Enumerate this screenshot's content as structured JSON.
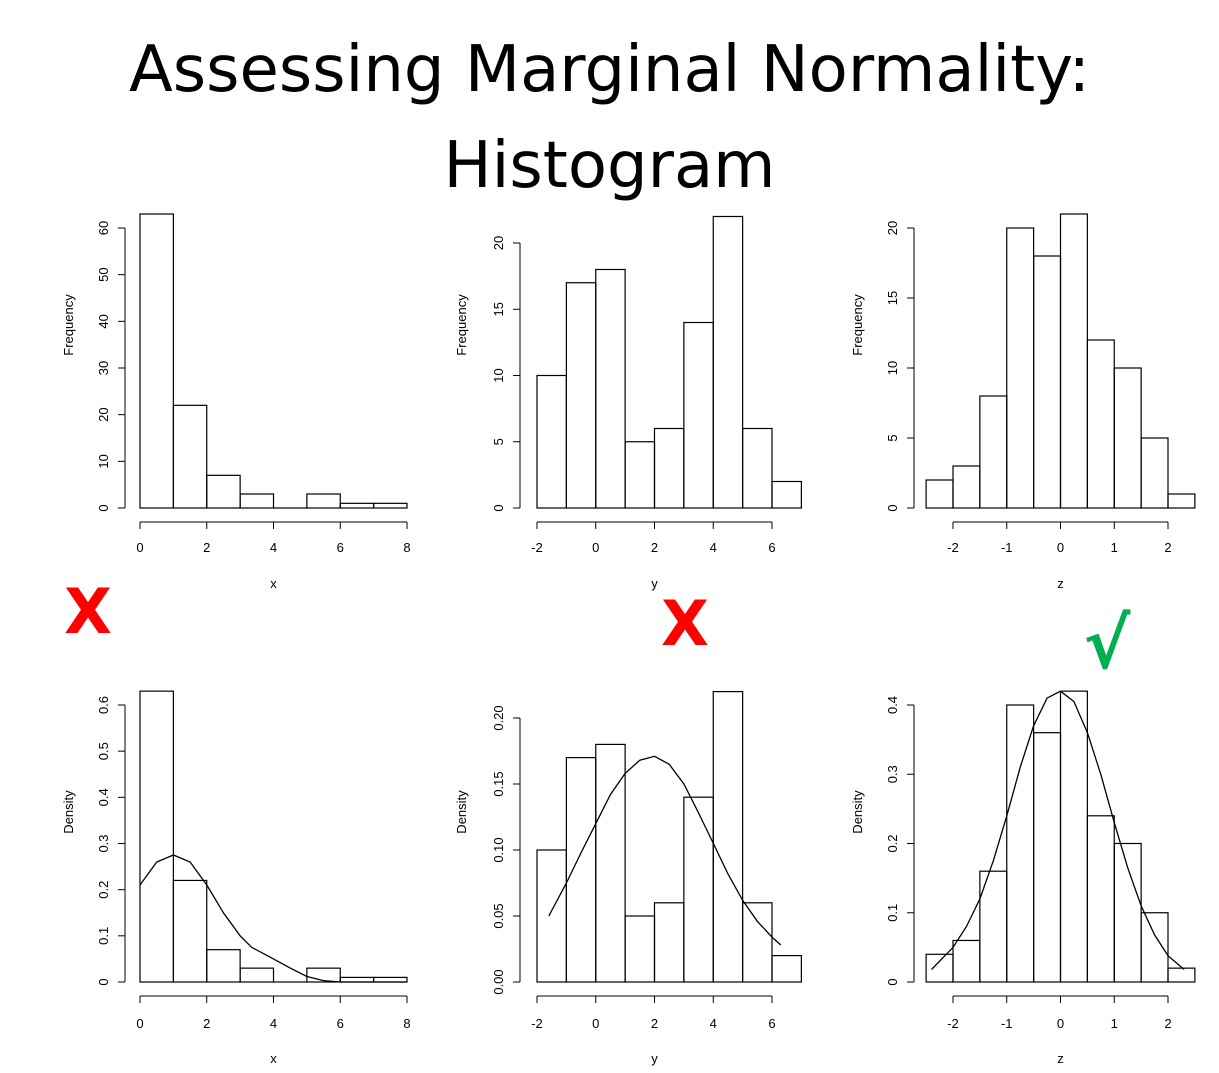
{
  "title_line1": "Assessing Marginal Normality:",
  "title_line2": "Histogram",
  "marks": [
    {
      "text": "X",
      "kind": "cross",
      "color": "#ff0000"
    },
    {
      "text": "X",
      "kind": "cross",
      "color": "#ff0000"
    },
    {
      "text": "√",
      "kind": "check",
      "color": "#00b050"
    }
  ],
  "chart_data": [
    {
      "type": "bar",
      "histogram": true,
      "xlabel": "x",
      "ylabel": "Frequency",
      "bin_width": 1,
      "bin_start": 0,
      "values": [
        63,
        22,
        7,
        3,
        0,
        3,
        1,
        1
      ],
      "xlim": [
        0,
        8
      ],
      "ylim": [
        0,
        60
      ],
      "xticks": [
        0,
        2,
        4,
        6,
        8
      ],
      "yticks": [
        0,
        10,
        20,
        30,
        40,
        50,
        60
      ]
    },
    {
      "type": "bar",
      "histogram": true,
      "xlabel": "y",
      "ylabel": "Frequency",
      "bin_width": 1,
      "bin_start": -2,
      "values": [
        10,
        17,
        18,
        5,
        6,
        14,
        22,
        6,
        2
      ],
      "xlim": [
        -2,
        6
      ],
      "ylim": [
        0,
        20
      ],
      "xticks": [
        -2,
        0,
        2,
        4,
        6
      ],
      "yticks": [
        0,
        5,
        10,
        15,
        20
      ]
    },
    {
      "type": "bar",
      "histogram": true,
      "xlabel": "z",
      "ylabel": "Frequency",
      "bin_width": 0.5,
      "bin_start": -2.5,
      "values": [
        2,
        3,
        8,
        20,
        18,
        21,
        12,
        10,
        5,
        1
      ],
      "xlim": [
        -2,
        2
      ],
      "ylim": [
        0,
        20
      ],
      "xticks": [
        -2,
        -1,
        0,
        1,
        2
      ],
      "yticks": [
        0,
        5,
        10,
        15,
        20
      ]
    },
    {
      "type": "bar",
      "histogram": true,
      "xlabel": "x",
      "ylabel": "Density",
      "bin_width": 1,
      "bin_start": 0,
      "values": [
        0.63,
        0.22,
        0.07,
        0.03,
        0.0,
        0.03,
        0.01,
        0.01
      ],
      "xlim": [
        0,
        8
      ],
      "ylim": [
        0,
        0.6
      ],
      "xticks": [
        0,
        2,
        4,
        6,
        8
      ],
      "yticks": [
        0.0,
        0.1,
        0.2,
        0.3,
        0.4,
        0.5,
        0.6
      ],
      "curve": {
        "x": [
          0,
          0.5,
          1.0,
          1.5,
          2.0,
          2.5,
          3.0,
          3.35,
          4.0,
          4.5,
          5.0,
          5.5,
          6.0,
          6.5,
          7.0,
          7.5,
          8.0
        ],
        "y": [
          0.21,
          0.26,
          0.275,
          0.26,
          0.21,
          0.15,
          0.1,
          0.075,
          0.05,
          0.03,
          0.012,
          0.003,
          0.0,
          0.0,
          0.0,
          0.0,
          0.0
        ]
      }
    },
    {
      "type": "bar",
      "histogram": true,
      "xlabel": "y",
      "ylabel": "Density",
      "bin_width": 1,
      "bin_start": -2,
      "values": [
        0.1,
        0.17,
        0.18,
        0.05,
        0.06,
        0.14,
        0.22,
        0.06,
        0.02
      ],
      "xlim": [
        -2,
        6
      ],
      "ylim": [
        0,
        0.2
      ],
      "xticks": [
        -2,
        0,
        2,
        4,
        6
      ],
      "yticks": [
        0.0,
        0.05,
        0.1,
        0.15,
        0.2
      ],
      "tick_labels": [
        "0.00",
        "0.05",
        "0.10",
        "0.15",
        "0.20"
      ],
      "curve": {
        "x": [
          -1.6,
          -1.0,
          -0.5,
          0.0,
          0.5,
          1.0,
          1.5,
          2.0,
          2.5,
          3.0,
          3.5,
          4.0,
          4.5,
          5.0,
          5.5,
          6.0,
          6.3
        ],
        "y": [
          0.05,
          0.075,
          0.098,
          0.12,
          0.142,
          0.158,
          0.168,
          0.171,
          0.165,
          0.15,
          0.128,
          0.105,
          0.082,
          0.062,
          0.046,
          0.034,
          0.028
        ]
      }
    },
    {
      "type": "bar",
      "histogram": true,
      "xlabel": "z",
      "ylabel": "Density",
      "bin_width": 0.5,
      "bin_start": -2.5,
      "values": [
        0.04,
        0.06,
        0.16,
        0.4,
        0.36,
        0.42,
        0.24,
        0.2,
        0.1,
        0.02
      ],
      "xlim": [
        -2,
        2
      ],
      "ylim": [
        0,
        0.4
      ],
      "xticks": [
        -2,
        -1,
        0,
        1,
        2
      ],
      "yticks": [
        0.0,
        0.1,
        0.2,
        0.3,
        0.4
      ],
      "curve": {
        "x": [
          -2.4,
          -2.0,
          -1.75,
          -1.5,
          -1.25,
          -1.0,
          -0.75,
          -0.5,
          -0.25,
          0.0,
          0.25,
          0.5,
          0.75,
          1.0,
          1.25,
          1.5,
          1.75,
          2.0,
          2.3
        ],
        "y": [
          0.018,
          0.05,
          0.08,
          0.12,
          0.175,
          0.24,
          0.31,
          0.37,
          0.41,
          0.42,
          0.405,
          0.36,
          0.3,
          0.23,
          0.165,
          0.11,
          0.068,
          0.038,
          0.018
        ]
      }
    }
  ]
}
